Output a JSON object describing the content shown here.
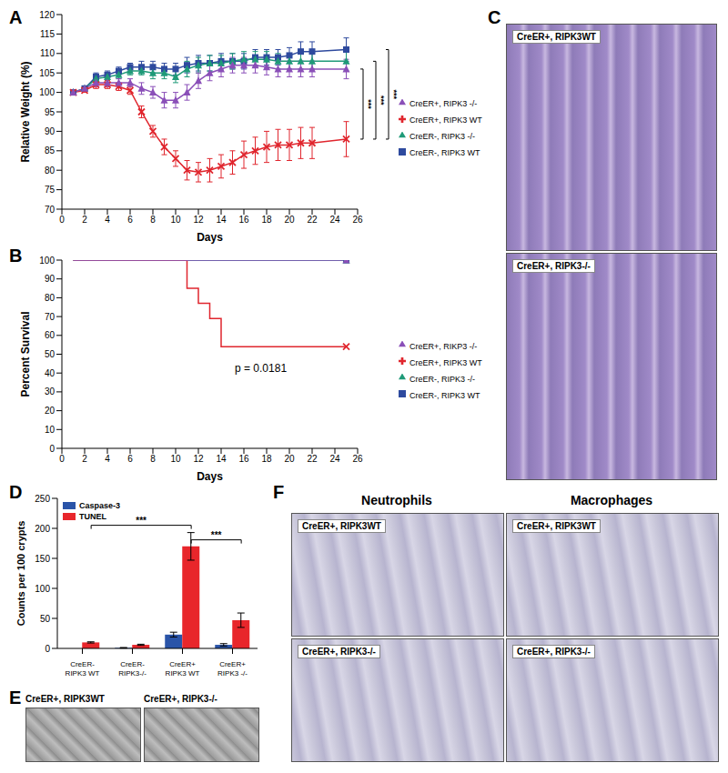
{
  "chart_data": [
    {
      "panel": "A",
      "type": "line",
      "x_label": "Days",
      "y_label": "Relative Weight (%)",
      "x": [
        1,
        2,
        3,
        4,
        5,
        6,
        7,
        8,
        9,
        10,
        11,
        12,
        13,
        14,
        15,
        16,
        17,
        18,
        19,
        20,
        21,
        22,
        25
      ],
      "xlim": [
        0,
        26
      ],
      "xticks": [
        0,
        2,
        4,
        6,
        8,
        10,
        12,
        14,
        16,
        18,
        20,
        22,
        24,
        26
      ],
      "ylim": [
        70,
        120
      ],
      "yticks": [
        70,
        75,
        80,
        85,
        90,
        95,
        100,
        105,
        110,
        115,
        120
      ],
      "legend": "right",
      "series": [
        {
          "name": "CreER-, RIPK3 WT",
          "color": "#2e4a9e",
          "marker": "square",
          "values": [
            100,
            101,
            104,
            104.5,
            105.5,
            106.5,
            106.5,
            106.5,
            106,
            106,
            107,
            107.5,
            107.5,
            108,
            108,
            108,
            109,
            109,
            109,
            109.5,
            110.5,
            110.5,
            111
          ],
          "errors": [
            0,
            0.5,
            1,
            1,
            1,
            1,
            1.5,
            1.5,
            1.5,
            1.5,
            2,
            2,
            2,
            2,
            2,
            2,
            2,
            2,
            2,
            2,
            2.5,
            2.5,
            3
          ]
        },
        {
          "name": "CreER-, RIPK3 -/-",
          "color": "#1f9a78",
          "marker": "triangle",
          "values": [
            100,
            101,
            103.5,
            104,
            104.5,
            105.5,
            105.5,
            105,
            105,
            104,
            106,
            107,
            107.5,
            107.5,
            108,
            108.5,
            108.5,
            108.5,
            108,
            108,
            108,
            108,
            108
          ],
          "errors": [
            0,
            0.5,
            1,
            1,
            1,
            1,
            1,
            1.5,
            1.5,
            1.5,
            2,
            2,
            2,
            2,
            2,
            2,
            2,
            2,
            2,
            2,
            2,
            2,
            2.5
          ]
        },
        {
          "name": "CreER+, RIPK3 WT",
          "color": "#e0262e",
          "marker": "x",
          "values": [
            100,
            100.5,
            102,
            102,
            101.5,
            100.5,
            95,
            90,
            86,
            83,
            80,
            79.5,
            80,
            81,
            82,
            84,
            85,
            86,
            86.5,
            86.5,
            87,
            87,
            88
          ],
          "errors": [
            0,
            0.5,
            1,
            1,
            1,
            1,
            1.5,
            1.5,
            2,
            2,
            2.5,
            2.5,
            3,
            3,
            3,
            3.5,
            3.5,
            4,
            4,
            4,
            4,
            4,
            4.5
          ]
        },
        {
          "name": "CreER+, RIPK3 -/-",
          "color": "#8a4fb8",
          "marker": "triangle",
          "values": [
            100,
            101,
            102.5,
            102.5,
            102.5,
            102.5,
            101,
            100,
            98,
            98,
            100,
            103,
            105,
            106,
            107,
            107,
            107,
            106.5,
            106,
            106,
            106,
            106,
            106
          ],
          "errors": [
            0,
            0.5,
            1,
            1,
            1,
            1,
            1.5,
            1.5,
            2,
            2,
            2,
            2,
            2,
            2,
            2,
            2,
            2,
            2,
            2,
            2,
            2,
            2,
            2.5
          ]
        }
      ],
      "annotations": [
        {
          "text": "***",
          "from": "CreER+, RIPK3 -/-",
          "to": "CreER+, RIPK3 WT"
        },
        {
          "text": "***",
          "from": "CreER-, RIPK3 -/-",
          "to": "CreER+, RIPK3 WT"
        },
        {
          "text": "***",
          "from": "CreER-, RIPK3 WT",
          "to": "CreER+, RIPK3 WT"
        }
      ]
    },
    {
      "panel": "B",
      "type": "line",
      "line_style": "step",
      "x_label": "Days",
      "y_label": "Percent Survival",
      "xlim": [
        0,
        26
      ],
      "xticks": [
        0,
        2,
        4,
        6,
        8,
        10,
        12,
        14,
        16,
        18,
        20,
        22,
        24,
        26
      ],
      "ylim": [
        0,
        100
      ],
      "yticks": [
        0,
        10,
        20,
        30,
        40,
        50,
        60,
        70,
        80,
        90,
        100
      ],
      "legend": "right",
      "series": [
        {
          "name": "CreER-, RIPK3 WT",
          "color": "#2e4a9e",
          "marker": "square",
          "x": [
            1,
            25
          ],
          "values": [
            100,
            100
          ]
        },
        {
          "name": "CreER-, RIPK3 -/-",
          "color": "#1f9a78",
          "marker": "triangle",
          "x": [
            1,
            25
          ],
          "values": [
            100,
            100
          ]
        },
        {
          "name": "CreER+, RIPK3 WT",
          "color": "#e0262e",
          "marker": "x",
          "x": [
            1,
            11,
            12,
            13,
            14,
            25
          ],
          "values": [
            100,
            85,
            77,
            69,
            54,
            54
          ]
        },
        {
          "name": "CreER+, RIKP3 -/-",
          "color": "#8a4fb8",
          "marker": "triangle",
          "x": [
            1,
            25
          ],
          "values": [
            100,
            100
          ]
        }
      ],
      "annotations": [
        {
          "text": "p = 0.0181"
        }
      ]
    },
    {
      "panel": "D",
      "type": "bar",
      "y_label": "Counts per 100 crypts",
      "categories": [
        "CreER-\nRIPK3 WT",
        "CreER-\nRIPK3-/-",
        "CreER+\nRIPK3 WT",
        "CreER+\nRIPK3 -/-"
      ],
      "ylim": [
        0,
        250
      ],
      "yticks": [
        0,
        50,
        100,
        150,
        200,
        250
      ],
      "legend": "upper left",
      "series": [
        {
          "name": "Caspase-3",
          "color": "#2a54a8",
          "values": [
            0,
            1,
            23,
            6
          ],
          "errors": [
            0,
            0.5,
            4,
            2
          ]
        },
        {
          "name": "TUNEL",
          "color": "#e8262b",
          "values": [
            10,
            6,
            170,
            47
          ],
          "errors": [
            1,
            1,
            23,
            12
          ]
        }
      ],
      "annotations": [
        {
          "text": "***",
          "from": "CreER-\nRIPK3 WT",
          "to": "CreER+\nRIPK3 WT"
        },
        {
          "text": "***",
          "from": "CreER+\nRIPK3 WT",
          "to": "CreER+\nRIPK3 -/-"
        }
      ]
    }
  ],
  "image_panels": [
    {
      "panel": "C",
      "labels": [
        "CreER+, RIPK3WT",
        "CreER+, RIPK3-/-"
      ]
    },
    {
      "panel": "E",
      "labels": [
        "CreER+, RIPK3WT",
        "CreER+, RIPK3-/-"
      ]
    },
    {
      "panel": "F",
      "columns": [
        "Neutrophils",
        "Macrophages"
      ],
      "rows": [
        "CreER+, RIPK3WT",
        "CreER+, RIPK3-/-"
      ]
    }
  ]
}
